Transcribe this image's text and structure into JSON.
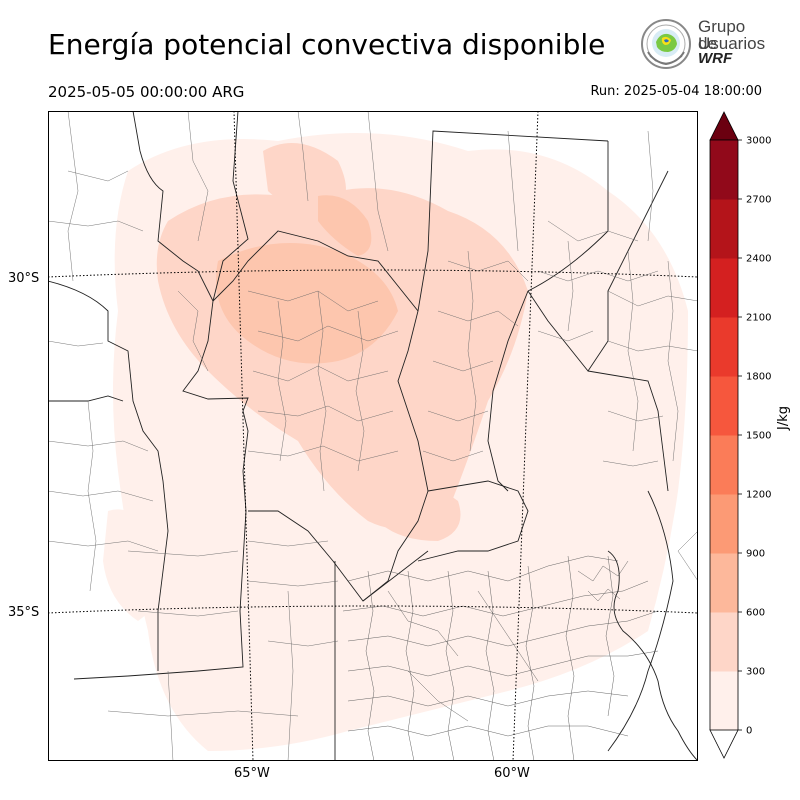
{
  "header": {
    "title": "Energía potencial convectiva disponible",
    "valid_time": "2025-05-05 00:00:00 ARG",
    "run_time": "Run: 2025-05-04 18:00:00"
  },
  "logo": {
    "line1": "Grupo de",
    "line2": "Usuarios",
    "line3": "WRF"
  },
  "map": {
    "latitude_labels": [
      "30°S",
      "35°S"
    ],
    "longitude_labels": [
      "65°W",
      "60°W"
    ]
  },
  "colorbar": {
    "unit": "J/kg",
    "levels": [
      0,
      300,
      600,
      900,
      1200,
      1500,
      1800,
      2100,
      2400,
      2700,
      3000
    ],
    "level_labels": [
      "0",
      "300",
      "600",
      "900",
      "1200",
      "1500",
      "1800",
      "2100",
      "2400",
      "2700",
      "3000"
    ],
    "colors": [
      "#fff0eb",
      "#fed6c8",
      "#fdb89b",
      "#fc9a75",
      "#fb7c58",
      "#f6573d",
      "#ea3a2c",
      "#d42020",
      "#b4141a",
      "#91091a",
      "#6b0010"
    ],
    "extend": "both"
  }
}
